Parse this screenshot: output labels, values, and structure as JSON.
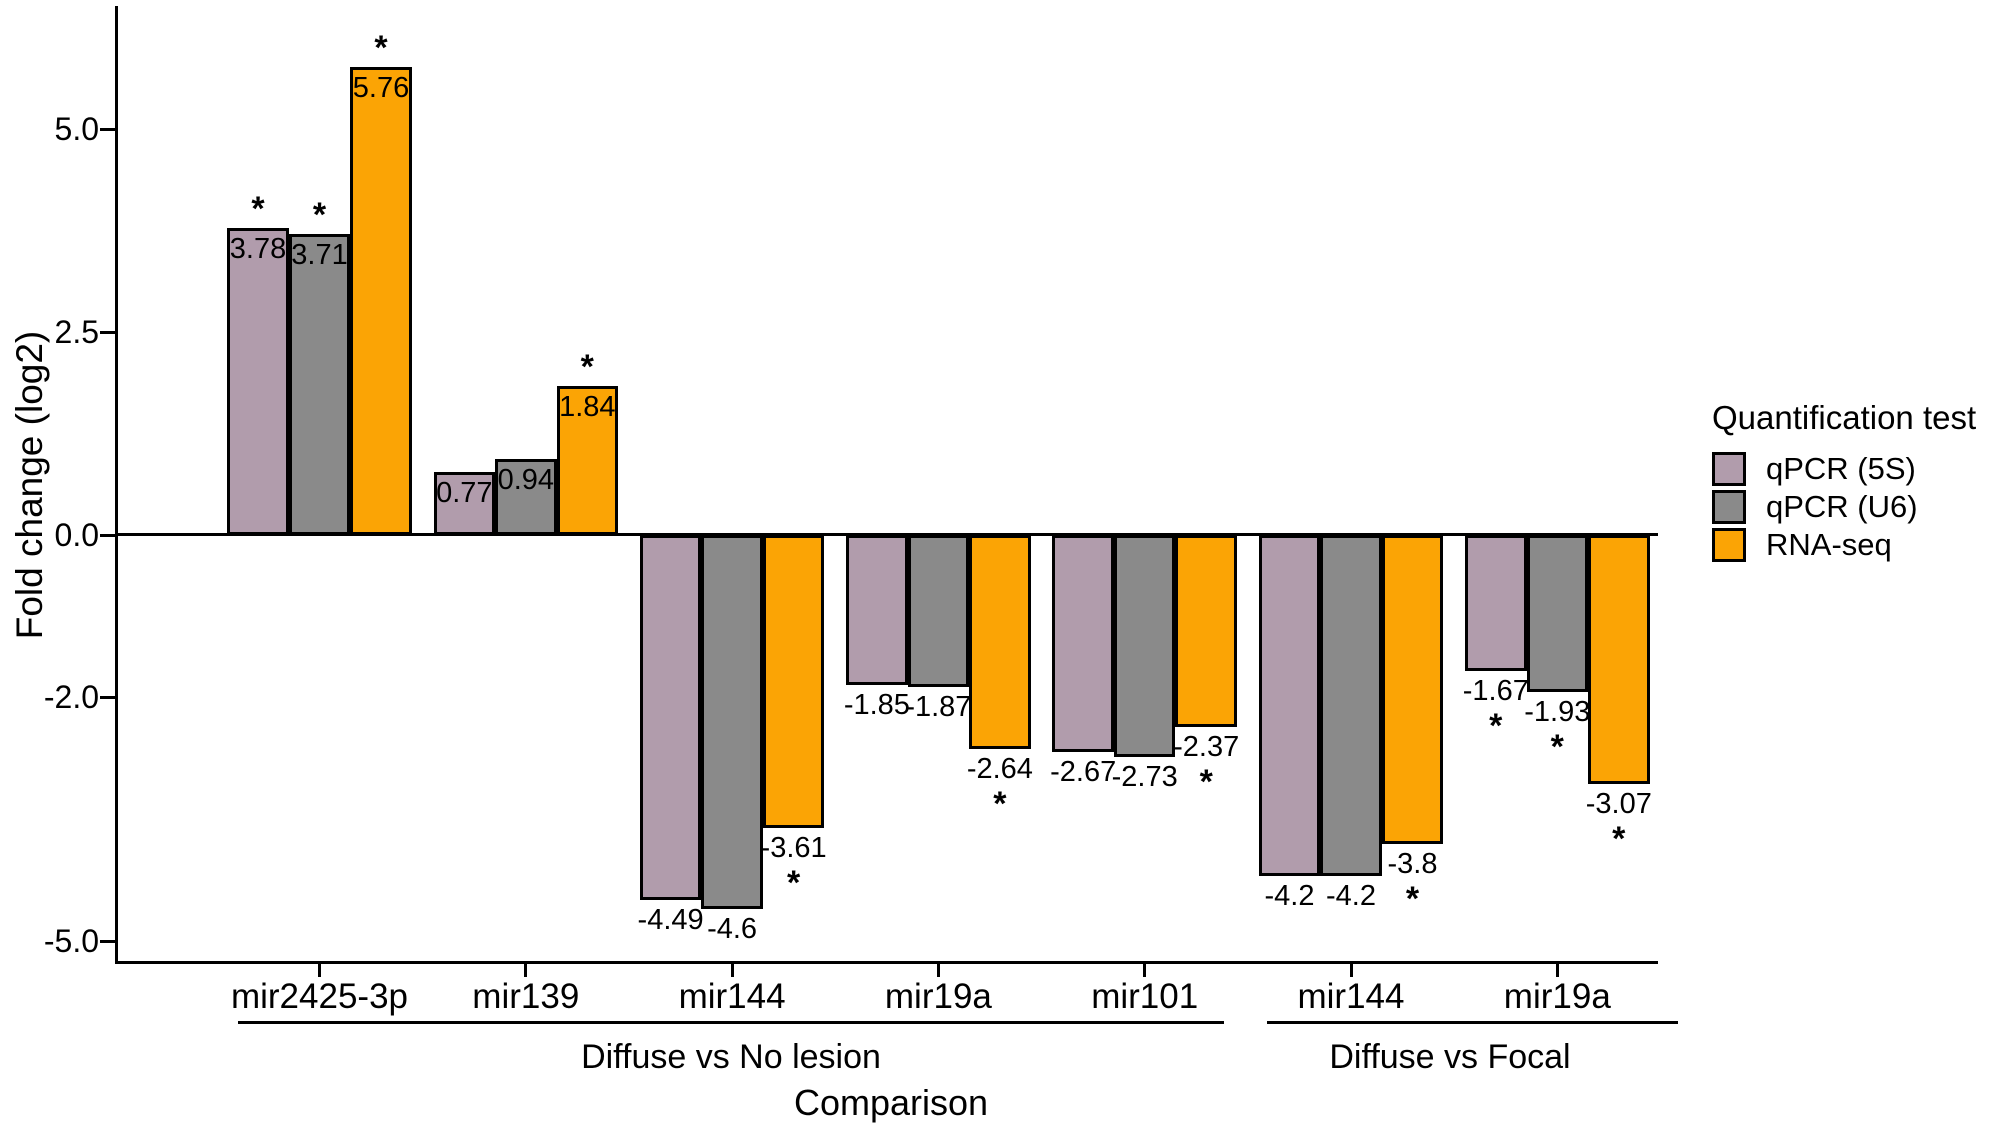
{
  "chart_data": {
    "type": "bar",
    "title": "",
    "xlabel": "Comparison",
    "ylabel": "Fold change (log2)",
    "ylim": [
      -5.3,
      6.5
    ],
    "yticks": [
      5.0,
      2.5,
      0.0,
      -2.0,
      -5.0
    ],
    "ytick_labels": [
      "5.0",
      "2.5",
      "0.0",
      "-2.0",
      "-5.0"
    ],
    "grid": "off",
    "legend_title": "Quantification test",
    "legend_position": "right",
    "significance_marker": "*",
    "categories": [
      "mir2425-3p",
      "mir139",
      "mir144",
      "mir19a",
      "mir101",
      "mir144",
      "mir19a"
    ],
    "category_groups": [
      {
        "label": "Diffuse vs No lesion",
        "span": [
          0,
          4
        ]
      },
      {
        "label": "Diffuse vs Focal",
        "span": [
          5,
          6
        ]
      }
    ],
    "series": [
      {
        "name": "qPCR (5S)",
        "color": "#B19CAC",
        "values": [
          3.78,
          0.77,
          -4.49,
          -1.85,
          -2.67,
          -4.2,
          -1.67
        ],
        "labels": [
          "3.78",
          "0.77",
          "-4.49",
          "-1.85",
          "-2.67",
          "-4.2",
          "-1.67"
        ],
        "significant": [
          true,
          false,
          false,
          false,
          false,
          false,
          true
        ]
      },
      {
        "name": "qPCR (U6)",
        "color": "#8A8A8A",
        "values": [
          3.71,
          0.94,
          -4.6,
          -1.87,
          -2.73,
          -4.2,
          -1.93
        ],
        "labels": [
          "3.71",
          "0.94",
          "-4.6",
          "-1.87",
          "-2.73",
          "-4.2",
          "-1.93"
        ],
        "significant": [
          true,
          false,
          false,
          false,
          false,
          false,
          true
        ]
      },
      {
        "name": "RNA-seq",
        "color": "#FBA405",
        "values": [
          5.76,
          1.84,
          -3.61,
          -2.64,
          -2.37,
          -3.8,
          -3.07
        ],
        "labels": [
          "5.76",
          "1.84",
          "-3.61",
          "-2.64",
          "-2.37",
          "-3.8",
          "-3.07"
        ],
        "significant": [
          true,
          true,
          true,
          true,
          true,
          true,
          true
        ]
      }
    ]
  }
}
